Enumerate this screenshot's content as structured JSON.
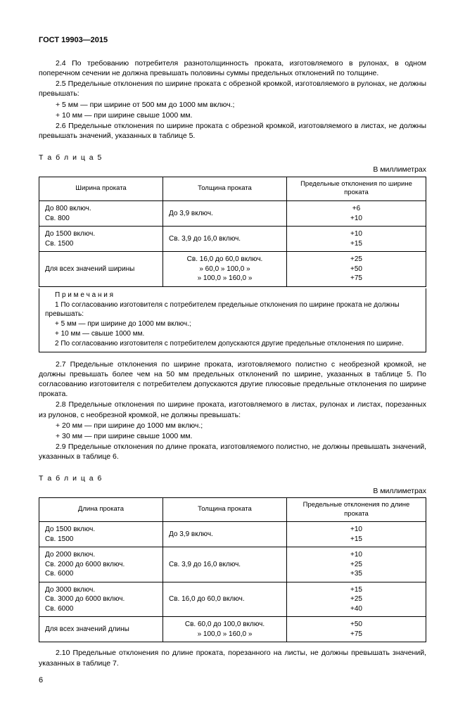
{
  "header": "ГОСТ 19903—2015",
  "p24": "2.4 По требованию потребителя разнотолщинность проката, изготовляемого в рулонах, в одном поперечном сечении не должна превышать половины суммы предельных отклонений по толщине.",
  "p25": "2.5 Предельные отклонения по ширине проката с обрезной кромкой, изготовляемого в рулонах, не должны превышать:",
  "p25a": "+ 5 мм — при ширине от 500 мм до 1000 мм включ.;",
  "p25b": "+ 10 мм — при ширине свыше 1000 мм.",
  "p26": "2.6 Предельные отклонения по ширине проката с обрезной кромкой, изготовляемого в листах, не должны превышать значений, указанных в таблице 5.",
  "t5label": "Т а б л и ц а  5",
  "units": "В миллиметрах",
  "t5": {
    "h1": "Ширина проката",
    "h2": "Толщина проката",
    "h3": "Предельные отклонения по ширине проката",
    "r1c1a": "До 800 включ.",
    "r1c1b": "Св. 800",
    "r1c2": "До 3,9 включ.",
    "r1c3a": "+6",
    "r1c3b": "+10",
    "r2c1a": "До 1500 включ.",
    "r2c1b": "Св. 1500",
    "r2c2": "Св. 3,9 до 16,0 включ.",
    "r2c3a": "+10",
    "r2c3b": "+15",
    "r3c1": "Для всех значений ширины",
    "r3c2a": "Св. 16,0  до  60,0 включ.",
    "r3c2b": "»  60,0  »  100,0  »",
    "r3c2c": "» 100,0  »  160,0  »",
    "r3c3a": "+25",
    "r3c3b": "+50",
    "r3c3c": "+75"
  },
  "t5notes_label": "П р и м е ч а н и я",
  "t5n1": "1  По согласованию изготовителя с потребителем предельные отклонения по ширине проката не должны превышать:",
  "t5n1a": "+ 5 мм — при ширине до 1000 мм включ.;",
  "t5n1b": "+ 10 мм — свыше 1000 мм.",
  "t5n2": "2  По согласованию изготовителя с потребителем допускаются другие предельные отклонения по ширине.",
  "p27": "2.7  Предельные отклонения по ширине проката, изготовляемого полистно с необрезной кромкой, не должны превышать более чем на 50 мм предельных отклонений по ширине, указанных в таблице 5. По согласованию изготовителя с потребителем допускаются другие плюсовые предельные отклонения по ширине проката.",
  "p28": "2.8  Предельные отклонения по ширине проката, изготовляемого в листах, рулонах и листах, порезанных из рулонов, с необрезной кромкой, не должны превышать:",
  "p28a": "+ 20 мм — при ширине до 1000 мм включ.;",
  "p28b": "+ 30 мм — при ширине свыше 1000 мм.",
  "p29": "2.9 Предельные отклонения по длине проката, изготовляемого полистно, не должны превышать значений, указанных в таблице 6.",
  "t6label": "Т а б л и ц а  6",
  "t6": {
    "h1": "Длина проката",
    "h2": "Толщина проката",
    "h3": "Предельные отклонения по длине проката",
    "r1c1a": "До 1500 включ.",
    "r1c1b": "Св. 1500",
    "r1c2": "До 3,9 включ.",
    "r1c3a": "+10",
    "r1c3b": "+15",
    "r2c1a": "До 2000 включ.",
    "r2c1b": "Св. 2000 до 6000 включ.",
    "r2c1c": "Св. 6000",
    "r2c2": "Св. 3,9 до 16,0 включ.",
    "r2c3a": "+10",
    "r2c3b": "+25",
    "r2c3c": "+35",
    "r3c1a": "До 3000 включ.",
    "r3c1b": "Св. 3000 до 6000 включ.",
    "r3c1c": "Св. 6000",
    "r3c2": "Св. 16,0 до 60,0 включ.",
    "r3c3a": "+15",
    "r3c3b": "+25",
    "r3c3c": "+40",
    "r4c1": "Для всех значений длины",
    "r4c2a": "Св. 60,0 до 100,0 включ.",
    "r4c2b": "» 100,0  »  160,0    »",
    "r4c3a": "+50",
    "r4c3b": "+75"
  },
  "p210": "2.10 Предельные отклонения по длине проката, порезанного на листы, не должны превышать значений, указанных в таблице 7.",
  "pagenum": "6"
}
